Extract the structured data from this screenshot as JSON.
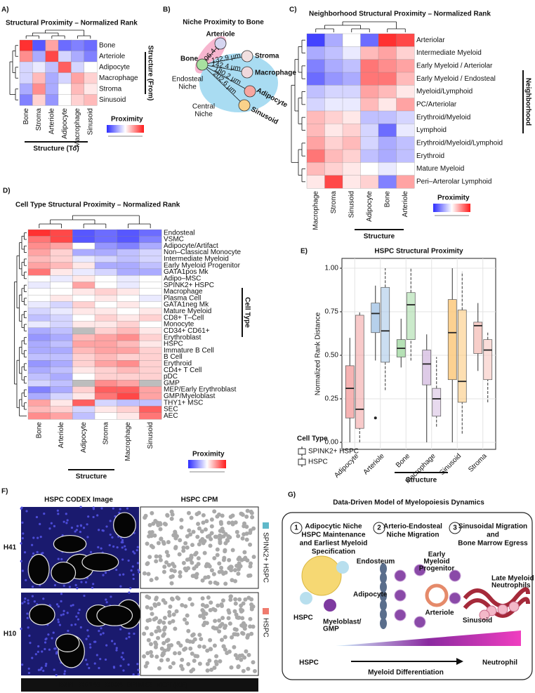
{
  "panel_labels": [
    "A)",
    "B)",
    "C)",
    "D)",
    "E)",
    "F)",
    "G)"
  ],
  "chart_data": [
    {
      "type": "heatmap",
      "title": "Structural Proximity – Normalized Rank",
      "rows": [
        "Bone",
        "Arteriole",
        "Adipocyte",
        "Macrophage",
        "Stroma",
        "Sinusoid"
      ],
      "columns": [
        "Bone",
        "Stroma",
        "Arteriole",
        "Adipocyte",
        "Macrophage",
        "Sinusoid"
      ],
      "values": [
        [
          0.95,
          0.1,
          0.7,
          0.15,
          0.2,
          0.15
        ],
        [
          0.75,
          0.3,
          0.9,
          0.4,
          0.3,
          0.2
        ],
        [
          0.4,
          0.45,
          0.35,
          0.85,
          0.4,
          0.5
        ],
        [
          0.4,
          0.65,
          0.3,
          0.4,
          0.7,
          0.6
        ],
        [
          0.3,
          0.75,
          0.3,
          0.5,
          0.65,
          0.55
        ],
        [
          0.2,
          0.6,
          0.25,
          0.5,
          0.6,
          0.65
        ]
      ],
      "y_label": "Structure (From)",
      "x_label": "Structure (To)",
      "colorbar_label": "Proximity",
      "colors": {
        "low": "#2d2dff",
        "mid": "#ffffff",
        "high": "#ff1a1a",
        "na": "#bdbdbd"
      }
    },
    {
      "type": "heatmap",
      "title": "Neighborhood Structural Proximity – Normalized Rank",
      "rows": [
        "Arteriolar",
        "Intermediate Myeloid",
        "Early Myeloid / Arteriolar",
        "Early Myeloid / Endosteal",
        "Myeloid/Lymphoid",
        "PC/Arteriolar",
        "Erythroid/Myeloid",
        "Lymphoid",
        "Erythroid/Myeloid/Lymphoid",
        "Erythroid",
        "Mature Myeloid",
        "Peri–Arterolar Lymphoid"
      ],
      "columns": [
        "Macrophage",
        "Stroma",
        "Sinusoid",
        "Adipocyte",
        "Bone",
        "Arteriole"
      ],
      "values": [
        [
          0.05,
          0.3,
          0.5,
          0.15,
          0.95,
          0.9
        ],
        [
          0.3,
          0.35,
          0.45,
          0.65,
          0.7,
          0.6
        ],
        [
          0.2,
          0.3,
          0.35,
          0.8,
          0.75,
          0.7
        ],
        [
          0.15,
          0.25,
          0.3,
          0.8,
          0.8,
          0.65
        ],
        [
          0.35,
          0.4,
          0.4,
          0.7,
          0.65,
          0.55
        ],
        [
          0.4,
          0.45,
          0.45,
          0.65,
          0.55,
          0.7
        ],
        [
          0.65,
          0.6,
          0.55,
          0.35,
          0.35,
          0.4
        ],
        [
          0.65,
          0.55,
          0.6,
          0.4,
          0.15,
          0.45
        ],
        [
          0.7,
          0.6,
          0.65,
          0.4,
          0.3,
          0.35
        ],
        [
          0.8,
          0.65,
          0.6,
          0.35,
          0.3,
          0.35
        ],
        [
          0.65,
          0.6,
          0.55,
          0.5,
          0.45,
          0.5
        ],
        [
          0.55,
          0.9,
          0.55,
          0.6,
          0.2,
          0.7
        ]
      ],
      "y_label": "Neighborhood",
      "x_label": "Structure",
      "colorbar_label": "Proximity",
      "colors": {
        "low": "#2d2dff",
        "mid": "#ffffff",
        "high": "#ff1a1a",
        "na": "#bdbdbd"
      }
    },
    {
      "type": "heatmap",
      "title": "Cell Type Structural Proximity – Normalized Rank",
      "rows": [
        "Endosteal",
        "VSMC",
        "Adipocyte/Artifact",
        "Non–Classical Monocyte",
        "Intermediate Myeloid",
        "Early Myeloid Progenitor",
        "GATA1pos Mk",
        "Adipo–MSC",
        "SPINK2+ HSPC",
        "Macrophage",
        "Plasma Cell",
        "GATA1neg Mk",
        "Mature Myeloid",
        "CD8+ T–Cell",
        "Monocyte",
        "CD34+ CD61+",
        "Erythroblast",
        "HSPC",
        "Immature B Cell",
        "B Cell",
        "Erythroid",
        "CD4+ T Cell",
        "pDC",
        "GMP",
        "MEP/Early Erythroblast",
        "GMP/Myeloblast",
        "THY1+ MSC",
        "SEC",
        "AEC"
      ],
      "columns": [
        "Bone",
        "Arteriole",
        "Adipocyte",
        "Stroma",
        "Macrophage",
        "Sinusoid"
      ],
      "values": [
        [
          0.95,
          0.9,
          0.1,
          0.15,
          0.1,
          0.15
        ],
        [
          0.8,
          0.9,
          0.1,
          0.15,
          0.1,
          0.2
        ],
        [
          0.75,
          0.7,
          0.5,
          0.25,
          0.2,
          0.3
        ],
        [
          0.7,
          0.6,
          0.3,
          0.3,
          0.35,
          0.4
        ],
        [
          0.65,
          0.6,
          0.45,
          0.4,
          0.35,
          0.4
        ],
        [
          0.7,
          0.65,
          0.55,
          0.3,
          0.3,
          0.35
        ],
        [
          0.8,
          0.55,
          0.45,
          0.4,
          0.3,
          0.3
        ],
        [
          0.5,
          0.45,
          0.55,
          0.5,
          0.45,
          0.5
        ],
        [
          0.45,
          0.5,
          0.7,
          0.5,
          0.45,
          0.5
        ],
        [
          0.5,
          0.5,
          0.55,
          0.6,
          0.55,
          0.5
        ],
        [
          0.5,
          0.55,
          0.5,
          0.55,
          0.5,
          0.45
        ],
        [
          0.45,
          0.4,
          0.6,
          0.5,
          0.55,
          0.5
        ],
        [
          0.4,
          0.45,
          0.55,
          0.55,
          0.5,
          0.55
        ],
        [
          0.35,
          0.4,
          0.5,
          0.6,
          0.55,
          0.6
        ],
        [
          0.45,
          0.4,
          0.55,
          0.55,
          0.6,
          0.5
        ],
        [
          0.3,
          0.35,
          null,
          0.6,
          0.65,
          0.55
        ],
        [
          0.25,
          0.3,
          0.65,
          0.7,
          0.75,
          0.6
        ],
        [
          0.3,
          0.35,
          0.7,
          0.7,
          0.65,
          0.55
        ],
        [
          0.3,
          0.3,
          0.65,
          0.7,
          0.7,
          0.6
        ],
        [
          0.35,
          0.35,
          0.6,
          0.65,
          0.6,
          0.6
        ],
        [
          0.25,
          0.3,
          0.6,
          0.7,
          0.75,
          0.6
        ],
        [
          0.3,
          0.35,
          0.55,
          0.6,
          0.65,
          0.6
        ],
        [
          0.35,
          0.3,
          0.5,
          0.6,
          0.6,
          0.6
        ],
        [
          0.4,
          0.35,
          null,
          0.75,
          0.7,
          null
        ],
        [
          0.2,
          0.3,
          0.6,
          0.85,
          0.85,
          0.7
        ],
        [
          0.3,
          0.4,
          0.55,
          0.8,
          0.9,
          0.7
        ],
        [
          0.7,
          0.55,
          0.85,
          0.4,
          0.35,
          0.35
        ],
        [
          0.65,
          0.6,
          0.4,
          0.55,
          0.6,
          0.85
        ],
        [
          0.75,
          0.7,
          0.35,
          0.5,
          0.55,
          0.8
        ]
      ],
      "y_label": "Cell Type",
      "x_label": "Structure",
      "colorbar_label": "Proximity",
      "colors": {
        "low": "#2d2dff",
        "mid": "#ffffff",
        "high": "#ff1a1a",
        "na": "#bdbdbd"
      }
    },
    {
      "type": "box",
      "title": "HSPC Structural Proximity",
      "y_label": "Normalized Rank Distance",
      "x_label": "Structure",
      "categories": [
        "Adipocyte",
        "Arteriole",
        "Bone",
        "Macrophage",
        "Sinusoid",
        "Stroma"
      ],
      "category_colors": [
        "#f4a6a6",
        "#a9c8e8",
        "#a8dca8",
        "#d8c2e3",
        "#fbc97e",
        "#f6c6c0"
      ],
      "ylim": [
        0,
        1
      ],
      "yticks": [
        {
          "value": 0,
          "label": "0.00"
        },
        {
          "value": 0.25,
          "label": "0.25"
        },
        {
          "value": 0.5,
          "label": "0.50"
        },
        {
          "value": 0.75,
          "label": "0.75"
        },
        {
          "value": 1,
          "label": "1.00"
        }
      ],
      "grid": true,
      "legend_title": "Cell Type",
      "series": [
        {
          "name": "SPINK2+ HSPC",
          "values": [
            [
              0,
              0.14,
              0.31,
              0.44,
              0.6
            ],
            [
              0.47,
              0.63,
              0.74,
              0.8,
              0.9
            ],
            [
              0.43,
              0.49,
              0.54,
              0.59,
              0.71
            ],
            [
              0,
              0.33,
              0.45,
              0.53,
              0.62
            ],
            [
              0,
              0.36,
              0.63,
              0.82,
              1
            ],
            [
              0.41,
              0.51,
              0.67,
              0.69,
              0.8
            ]
          ],
          "outliers": [
            [],
            [
              0.14
            ],
            [],
            [],
            [],
            []
          ]
        },
        {
          "name": "HSPC",
          "values": [
            [
              0,
              0.08,
              0.19,
              0.73,
              0.75
            ],
            [
              0.3,
              0.46,
              0.64,
              0.89,
              1
            ],
            [
              0.47,
              0.59,
              0.79,
              0.86,
              1
            ],
            [
              0.09,
              0.15,
              0.25,
              0.31,
              0.49
            ],
            [
              0.05,
              0.23,
              0.35,
              0.76,
              0.98
            ],
            [
              0.23,
              0.36,
              0.53,
              0.59,
              0.63
            ]
          ]
        }
      ]
    }
  ],
  "niche_diagram": {
    "title": "Niche Proximity to Bone",
    "nodes": [
      "Bone",
      "Arteriole",
      "Stroma",
      "Macrophage",
      "Adipocyte",
      "Sinusoid"
    ],
    "edges": [
      "106.4 µm",
      "132.9 µm",
      "142.4 µm",
      "180.2 µm",
      "202.6 µm"
    ],
    "niches": [
      [
        "Endosteal",
        "Niche"
      ],
      [
        "Central",
        "Niche"
      ]
    ]
  },
  "codex_panel": {
    "titles": [
      "HSPC CODEX Image",
      "HSPC CPM"
    ],
    "samples": [
      "H41",
      "H10"
    ],
    "legend": [
      "SPINK2+ HSPC",
      "HSPC"
    ],
    "legend_colors": [
      "#5fb8c9",
      "#f07b6e"
    ],
    "channels": [
      "DAPI",
      "CD146",
      "CD34",
      "SPINK2",
      "MCT (AF)"
    ],
    "channel_colors": [
      "#4a90e2",
      "#ffffff",
      "#2ecc40",
      "#ee3333",
      "#f08030"
    ]
  },
  "model_panel": {
    "title": "Data-Driven Model of Myelopoiesis Dynamics",
    "steps": [
      {
        "number": "1",
        "lines": [
          "Adipocytic Niche",
          "HSPC Maintenance",
          "and Earliest Myeloid",
          "Specification"
        ]
      },
      {
        "number": "2",
        "lines": [
          "Arterio-Endosteal",
          "Niche Migration"
        ]
      },
      {
        "number": "3",
        "lines": [
          "Sinusoidal Migration",
          "and",
          "Bone Marrow Egress"
        ]
      }
    ],
    "labels": [
      [
        "Adipocyte"
      ],
      [
        "HSPC"
      ],
      [
        "Myeloblast/",
        "GMP"
      ],
      [
        "Endosteum"
      ],
      [
        "Early",
        "Myeloid",
        "Progenitor"
      ],
      [
        "Arteriole"
      ],
      [
        "Late Myeloid /",
        "Neutrophils"
      ],
      [
        "Sinusoid"
      ]
    ],
    "axis": {
      "start": "HSPC",
      "end": "Neutrophil",
      "label": "Myeloid Differentiation"
    }
  }
}
